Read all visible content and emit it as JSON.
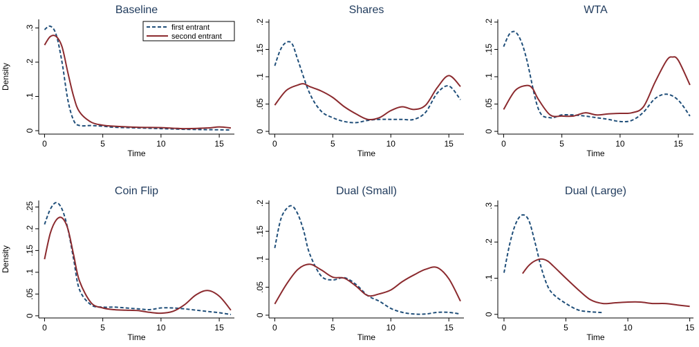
{
  "chart_data": [
    {
      "type": "line",
      "title": "Baseline",
      "xlabel": "Time",
      "ylabel": "Density",
      "xlim": [
        -0.5,
        16.3
      ],
      "ylim": [
        -0.01,
        0.325
      ],
      "xticks": [
        "0",
        "5",
        "10",
        "15"
      ],
      "yticks": [
        "0",
        ".1",
        ".2",
        ".3"
      ],
      "legend": {
        "position": "top-right",
        "entries": [
          "first entrant",
          "second entrant"
        ]
      },
      "series": [
        {
          "name": "first entrant",
          "style": "dashed",
          "color": "#1f4e79",
          "x": [
            0,
            0.5,
            1,
            1.5,
            2,
            2.5,
            3,
            4,
            5,
            6,
            8,
            10,
            12,
            14,
            16
          ],
          "y": [
            0.295,
            0.305,
            0.28,
            0.2,
            0.09,
            0.03,
            0.015,
            0.015,
            0.013,
            0.01,
            0.008,
            0.006,
            0.004,
            0.003,
            0.002
          ]
        },
        {
          "name": "second entrant",
          "style": "solid",
          "color": "#8b2a2e",
          "x": [
            0,
            0.5,
            1,
            1.5,
            2,
            2.5,
            3,
            4,
            5,
            6,
            8,
            10,
            12,
            14,
            15,
            16
          ],
          "y": [
            0.25,
            0.275,
            0.275,
            0.245,
            0.17,
            0.1,
            0.055,
            0.025,
            0.016,
            0.013,
            0.01,
            0.009,
            0.006,
            0.008,
            0.011,
            0.008
          ]
        }
      ]
    },
    {
      "type": "line",
      "title": "Shares",
      "xlabel": "Time",
      "ylabel": "",
      "xlim": [
        -0.5,
        16.3
      ],
      "ylim": [
        -0.005,
        0.205
      ],
      "xticks": [
        "0",
        "5",
        "10",
        "15"
      ],
      "yticks": [
        "0",
        ".05",
        ".1",
        ".15",
        ".2"
      ],
      "series": [
        {
          "name": "first entrant",
          "style": "dashed",
          "color": "#1f4e79",
          "x": [
            0,
            0.5,
            1,
            1.5,
            2,
            3,
            4,
            5,
            6,
            7,
            8,
            9,
            10,
            11,
            12,
            13,
            14,
            15,
            16
          ],
          "y": [
            0.12,
            0.15,
            0.163,
            0.16,
            0.13,
            0.07,
            0.037,
            0.025,
            0.018,
            0.016,
            0.02,
            0.022,
            0.022,
            0.022,
            0.022,
            0.035,
            0.07,
            0.083,
            0.058
          ]
        },
        {
          "name": "second entrant",
          "style": "solid",
          "color": "#8b2a2e",
          "x": [
            0,
            1,
            2,
            2.5,
            3,
            4,
            5,
            6,
            7,
            8,
            9,
            10,
            11,
            12,
            13,
            14,
            15,
            16
          ],
          "y": [
            0.048,
            0.075,
            0.085,
            0.087,
            0.082,
            0.074,
            0.062,
            0.045,
            0.032,
            0.022,
            0.025,
            0.038,
            0.045,
            0.04,
            0.048,
            0.08,
            0.102,
            0.082
          ]
        }
      ]
    },
    {
      "type": "line",
      "title": "WTA",
      "xlabel": "Time",
      "ylabel": "",
      "xlim": [
        -0.5,
        16.3
      ],
      "ylim": [
        -0.005,
        0.205
      ],
      "xticks": [
        "0",
        "5",
        "10",
        "15"
      ],
      "yticks": [
        "0",
        ".05",
        ".1",
        ".15",
        ".2"
      ],
      "series": [
        {
          "name": "first entrant",
          "style": "dashed",
          "color": "#1f4e79",
          "x": [
            0,
            0.5,
            1,
            1.5,
            2,
            3,
            4,
            5,
            6,
            7,
            8,
            9,
            10,
            11,
            12,
            13,
            14,
            15,
            16
          ],
          "y": [
            0.155,
            0.178,
            0.182,
            0.165,
            0.13,
            0.04,
            0.025,
            0.03,
            0.03,
            0.028,
            0.025,
            0.022,
            0.018,
            0.02,
            0.035,
            0.06,
            0.068,
            0.057,
            0.028
          ]
        },
        {
          "name": "second entrant",
          "style": "solid",
          "color": "#8b2a2e",
          "x": [
            0,
            1,
            2,
            2.5,
            3,
            4,
            5,
            6,
            7,
            8,
            9,
            10,
            11,
            12,
            13,
            14,
            14.5,
            15,
            16
          ],
          "y": [
            0.04,
            0.075,
            0.084,
            0.078,
            0.058,
            0.03,
            0.028,
            0.028,
            0.034,
            0.03,
            0.032,
            0.033,
            0.034,
            0.045,
            0.09,
            0.13,
            0.136,
            0.13,
            0.085
          ]
        }
      ]
    },
    {
      "type": "line",
      "title": "Coin Flip",
      "xlabel": "Time",
      "ylabel": "Density",
      "xlim": [
        -0.5,
        16.3
      ],
      "ylim": [
        -0.005,
        0.265
      ],
      "xticks": [
        "0",
        "5",
        "10",
        "15"
      ],
      "yticks": [
        "0",
        ".05",
        ".1",
        ".15",
        ".2",
        ".25"
      ],
      "series": [
        {
          "name": "first entrant",
          "style": "dashed",
          "color": "#1f4e79",
          "x": [
            0,
            0.5,
            1,
            1.5,
            2,
            2.5,
            3,
            4,
            5,
            6,
            7,
            8,
            9,
            10,
            11,
            12,
            13,
            14,
            15,
            16
          ],
          "y": [
            0.21,
            0.245,
            0.26,
            0.245,
            0.2,
            0.13,
            0.06,
            0.025,
            0.02,
            0.02,
            0.018,
            0.016,
            0.014,
            0.018,
            0.018,
            0.016,
            0.013,
            0.01,
            0.007,
            0.003
          ]
        },
        {
          "name": "second entrant",
          "style": "solid",
          "color": "#8b2a2e",
          "x": [
            0,
            0.5,
            1,
            1.5,
            2,
            2.5,
            3,
            4,
            5,
            6,
            7,
            8,
            9,
            10,
            11,
            12,
            13,
            14,
            15,
            16
          ],
          "y": [
            0.13,
            0.19,
            0.22,
            0.225,
            0.2,
            0.14,
            0.08,
            0.03,
            0.018,
            0.014,
            0.013,
            0.012,
            0.008,
            0.006,
            0.01,
            0.025,
            0.048,
            0.058,
            0.045,
            0.013
          ]
        }
      ]
    },
    {
      "type": "line",
      "title": "Dual (Small)",
      "xlabel": "Time",
      "ylabel": "",
      "xlim": [
        -0.5,
        16.3
      ],
      "ylim": [
        -0.005,
        0.205
      ],
      "xticks": [
        "0",
        "5",
        "10",
        "15"
      ],
      "yticks": [
        "0",
        ".05",
        ".1",
        ".15",
        ".2"
      ],
      "series": [
        {
          "name": "first entrant",
          "style": "dashed",
          "color": "#1f4e79",
          "x": [
            0,
            0.5,
            1,
            1.5,
            2,
            2.5,
            3,
            4,
            5,
            6,
            7,
            8,
            9,
            10,
            11,
            12,
            13,
            14,
            15,
            16
          ],
          "y": [
            0.12,
            0.17,
            0.19,
            0.195,
            0.18,
            0.15,
            0.11,
            0.07,
            0.063,
            0.067,
            0.055,
            0.035,
            0.025,
            0.012,
            0.005,
            0.002,
            0.002,
            0.005,
            0.005,
            0.002
          ]
        },
        {
          "name": "second entrant",
          "style": "solid",
          "color": "#8b2a2e",
          "x": [
            0,
            1,
            2,
            3,
            4,
            5,
            6,
            7,
            8,
            9,
            10,
            11,
            12,
            13,
            14,
            15,
            16
          ],
          "y": [
            0.02,
            0.055,
            0.082,
            0.091,
            0.081,
            0.068,
            0.066,
            0.052,
            0.035,
            0.038,
            0.045,
            0.06,
            0.072,
            0.082,
            0.085,
            0.065,
            0.025
          ]
        }
      ]
    },
    {
      "type": "line",
      "title": "Dual (Large)",
      "xlabel": "Time",
      "ylabel": "",
      "xlim": [
        -0.5,
        15.3
      ],
      "ylim": [
        -0.01,
        0.315
      ],
      "xticks": [
        "0",
        "5",
        "10",
        "15"
      ],
      "yticks": [
        "0",
        ".1",
        ".2",
        ".3"
      ],
      "series": [
        {
          "name": "first entrant",
          "style": "dashed",
          "color": "#1f4e79",
          "x": [
            0,
            0.5,
            1,
            1.5,
            2,
            2.5,
            3,
            3.5,
            4,
            5,
            6,
            7,
            8
          ],
          "y": [
            0.115,
            0.2,
            0.255,
            0.275,
            0.26,
            0.2,
            0.13,
            0.08,
            0.055,
            0.03,
            0.012,
            0.007,
            0.005
          ]
        },
        {
          "name": "second entrant",
          "style": "solid",
          "color": "#8b2a2e",
          "x": [
            1.5,
            2,
            2.5,
            3,
            3.5,
            4,
            5,
            6,
            7,
            8,
            9,
            10,
            11,
            12,
            13,
            14,
            15
          ],
          "y": [
            0.113,
            0.135,
            0.148,
            0.153,
            0.148,
            0.133,
            0.1,
            0.068,
            0.04,
            0.03,
            0.032,
            0.034,
            0.034,
            0.03,
            0.03,
            0.026,
            0.022
          ]
        }
      ]
    }
  ]
}
